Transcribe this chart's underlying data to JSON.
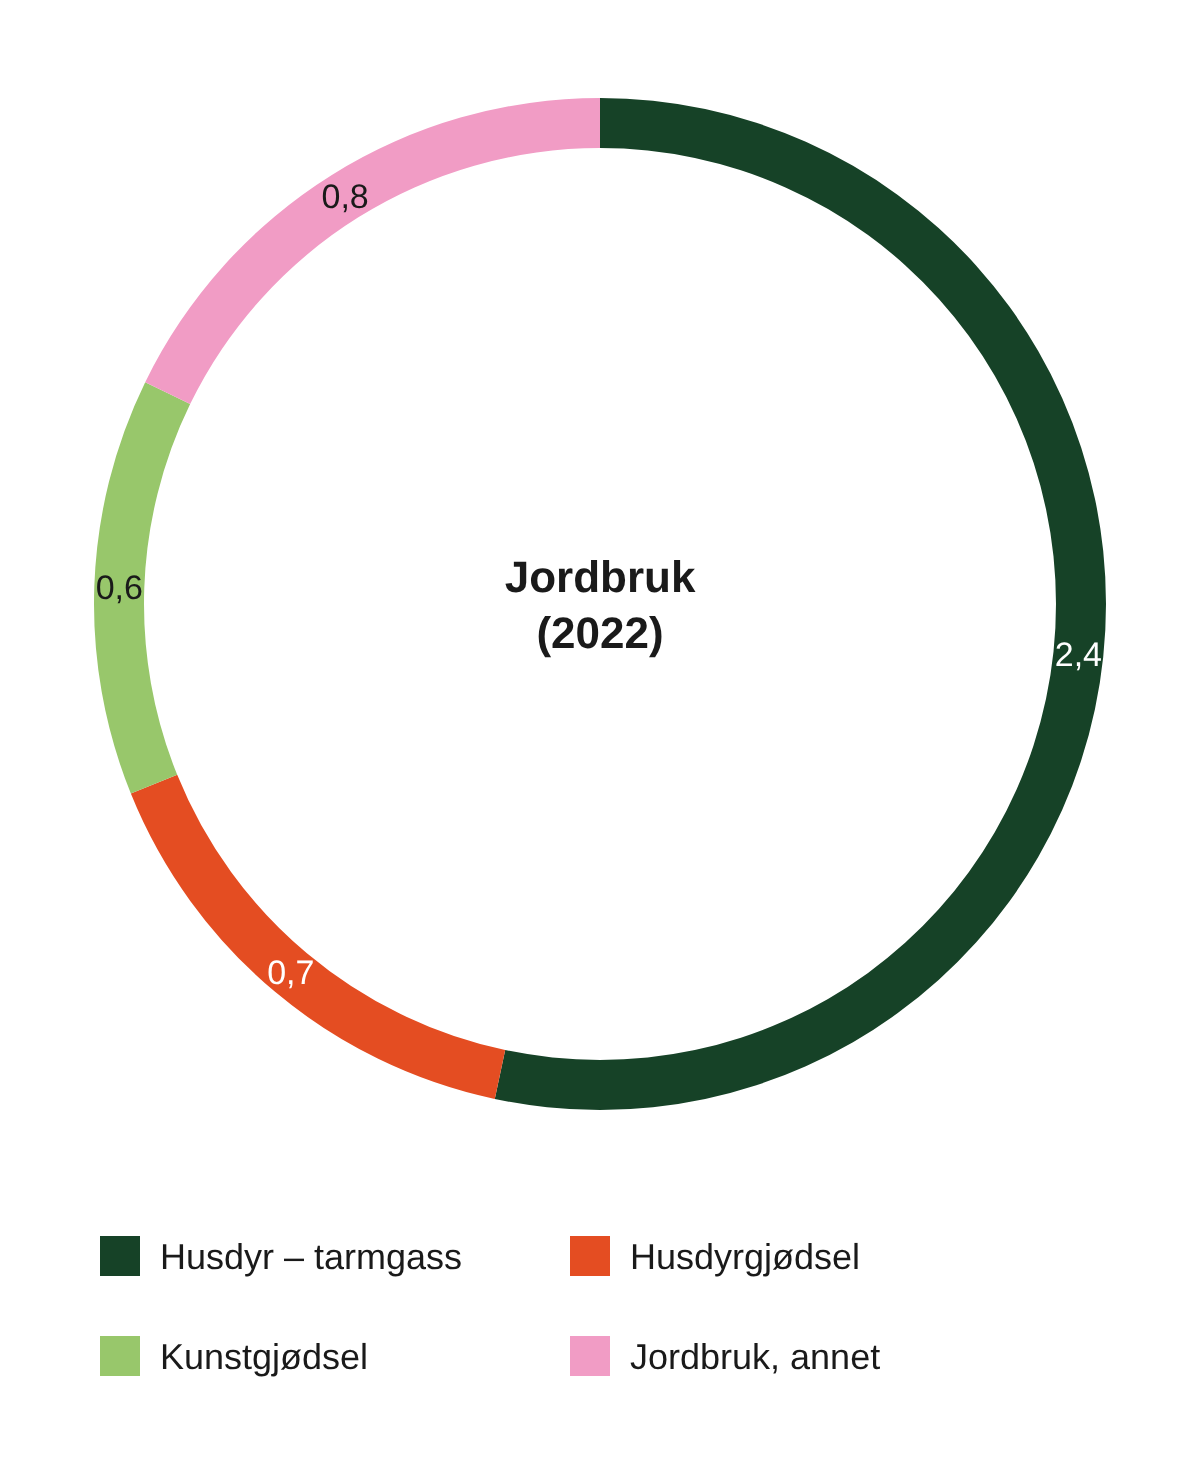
{
  "chart_data": {
    "type": "donut",
    "title": "Jordbruk",
    "subtitle": "(2022)",
    "categories": [
      "Husdyr – tarmgass",
      "Husdyrgjødsel",
      "Kunstgjødsel",
      "Jordbruk, annet"
    ],
    "values": [
      2.4,
      0.7,
      0.6,
      0.8
    ],
    "colors": [
      "#164227",
      "#e44d22",
      "#98c76b",
      "#f19cc5"
    ],
    "value_labels": [
      "2,4",
      "0,7",
      "0,6",
      "0,8"
    ],
    "legend": "bottom"
  }
}
